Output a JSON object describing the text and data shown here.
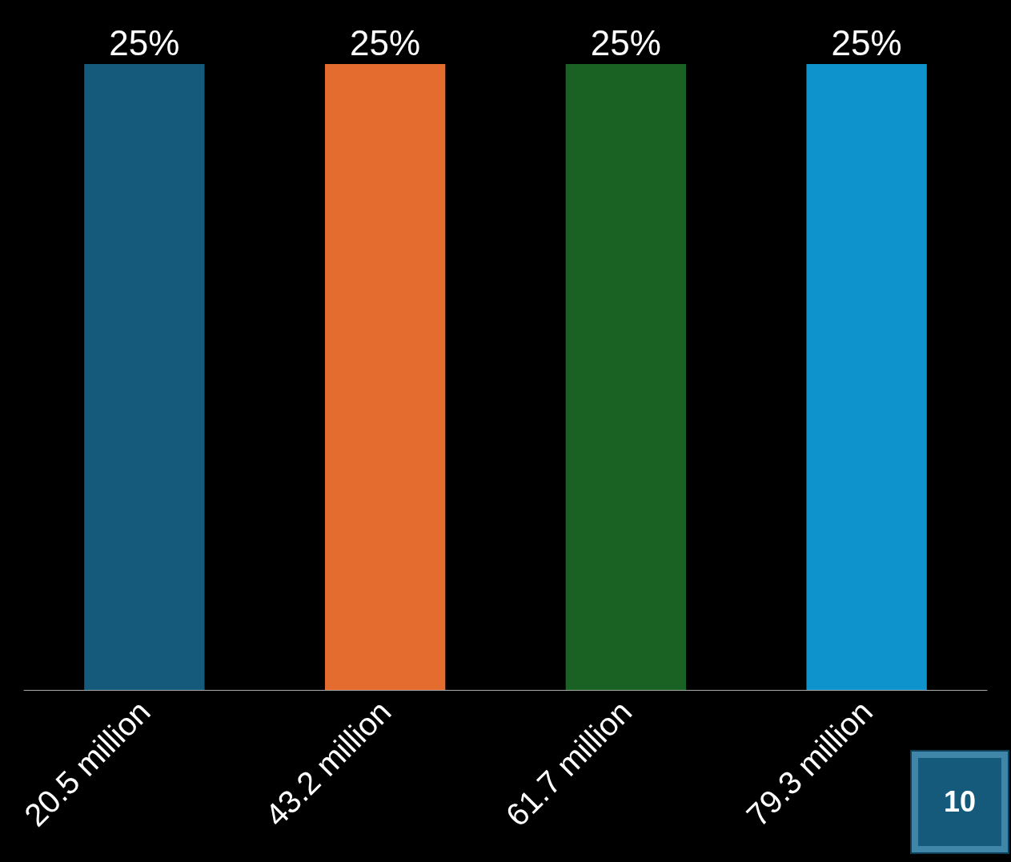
{
  "chart_data": {
    "type": "bar",
    "categories": [
      "20.5 million",
      "43.2 million",
      "61.7 million",
      "79.3 million"
    ],
    "values": [
      25,
      25,
      25,
      25
    ],
    "colors": [
      "#155a7a",
      "#e46c2e",
      "#1a6224",
      "#0e93cc"
    ],
    "value_labels": [
      "25%",
      "25%",
      "25%",
      "25%"
    ],
    "tick_labels": "x",
    "annotations": [
      "10"
    ]
  }
}
